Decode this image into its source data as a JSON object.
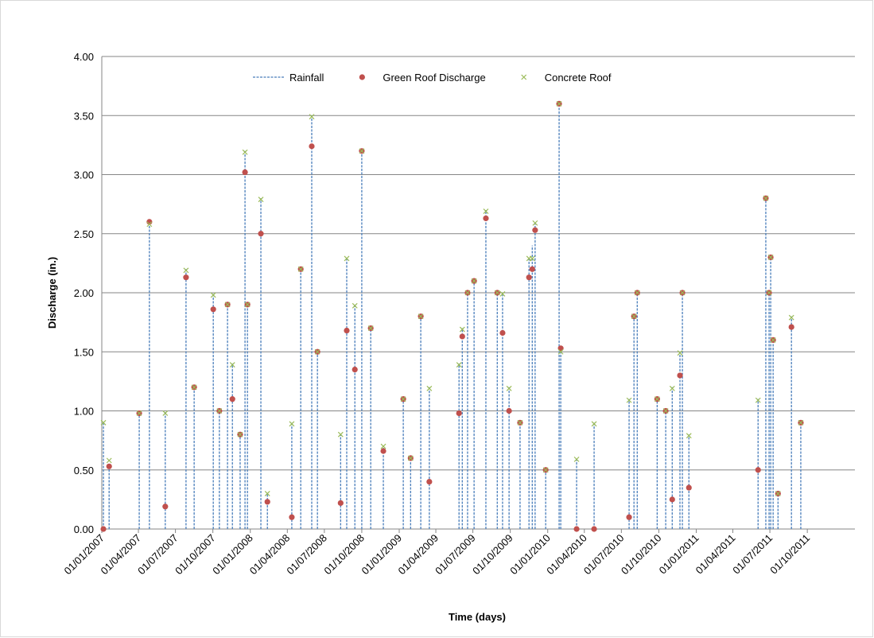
{
  "chart_data": {
    "type": "line",
    "y_label": "Discharge (in.)",
    "x_label": "Time (days)",
    "x": [
      "05/01/2007",
      "19/01/2007",
      "03/04/2007",
      "28/04/2007",
      "06/06/2007",
      "27/07/2007",
      "16/08/2007",
      "02/10/2007",
      "17/10/2007",
      "06/11/2007",
      "18/11/2007",
      "07/12/2007",
      "19/12/2007",
      "25/12/2007",
      "27/01/2008",
      "12/02/2008",
      "12/04/2008",
      "04/05/2008",
      "31/05/2008",
      "14/06/2008",
      "10/08/2008",
      "25/08/2008",
      "14/09/2008",
      "01/10/2008",
      "23/10/2008",
      "23/11/2008",
      "11/01/2009",
      "29/01/2009",
      "23/02/2009",
      "16/03/2009",
      "28/05/2009",
      "05/06/2009",
      "18/06/2009",
      "04/07/2009",
      "02/08/2009",
      "30/08/2009",
      "12/09/2009",
      "28/09/2009",
      "25/10/2009",
      "16/11/2009",
      "24/11/2009",
      "01/12/2009",
      "27/12/2009",
      "29/01/2010",
      "02/02/2010",
      "13/03/2010",
      "25/04/2010",
      "20/07/2010",
      "01/08/2010",
      "09/08/2010",
      "27/09/2010",
      "18/10/2010",
      "03/11/2010",
      "22/11/2010",
      "28/11/2010",
      "14/12/2010",
      "02/06/2011",
      "21/06/2011",
      "29/06/2011",
      "03/07/2011",
      "09/07/2011",
      "21/07/2011",
      "23/08/2011",
      "15/09/2011"
    ],
    "series": [
      {
        "name": "Rainfall",
        "color": "#4a7ebb",
        "values": [
          0.9,
          0.55,
          1.0,
          2.6,
          1.0,
          2.2,
          1.2,
          2.0,
          1.0,
          1.9,
          1.4,
          0.8,
          3.2,
          1.9,
          2.8,
          0.3,
          0.9,
          2.2,
          3.5,
          1.5,
          0.8,
          2.3,
          1.9,
          3.2,
          1.7,
          0.7,
          1.1,
          0.6,
          1.8,
          1.2,
          1.4,
          1.7,
          2.0,
          2.1,
          2.7,
          2.0,
          2.0,
          1.2,
          0.9,
          2.3,
          2.4,
          2.6,
          0.5,
          3.6,
          1.5,
          0.6,
          0.9,
          1.1,
          1.8,
          2.0,
          1.1,
          1.0,
          1.2,
          1.5,
          2.0,
          0.8,
          1.1,
          2.8,
          2.0,
          2.3,
          1.6,
          0.3,
          1.8,
          0.9
        ]
      },
      {
        "name": "Green Roof Discharge",
        "color": "#c0504d",
        "values": [
          0,
          0.53,
          0.98,
          2.6,
          0.19,
          2.13,
          1.2,
          1.86,
          1.0,
          1.9,
          1.1,
          0.8,
          3.02,
          1.9,
          2.5,
          0.23,
          0.1,
          2.2,
          3.24,
          1.5,
          0.22,
          1.68,
          1.35,
          3.2,
          1.7,
          0.66,
          1.1,
          0.6,
          1.8,
          0.4,
          0.98,
          1.63,
          2.0,
          2.1,
          2.63,
          2.0,
          1.66,
          1.0,
          0.9,
          2.13,
          2.2,
          2.53,
          0.5,
          3.6,
          1.53,
          0,
          0,
          0.1,
          1.8,
          2.0,
          1.1,
          1.0,
          0.25,
          1.3,
          2.0,
          0.35,
          0.5,
          2.8,
          2.0,
          2.3,
          1.6,
          0.3,
          1.71,
          0.9
        ]
      },
      {
        "name": "Concrete Roof",
        "color": "#9bbb59",
        "values": [
          0.9,
          0.58,
          0.98,
          2.58,
          0.98,
          2.19,
          1.2,
          1.98,
          1.0,
          1.9,
          1.39,
          0.8,
          3.19,
          1.9,
          2.79,
          0.3,
          0.89,
          2.2,
          3.49,
          1.5,
          0.8,
          2.29,
          1.89,
          3.2,
          1.7,
          0.7,
          1.1,
          0.6,
          1.8,
          1.19,
          1.39,
          1.69,
          2.0,
          2.1,
          2.69,
          2.0,
          1.99,
          1.19,
          0.9,
          2.29,
          2.29,
          2.59,
          0.5,
          3.6,
          1.5,
          0.59,
          0.89,
          1.09,
          1.8,
          2.0,
          1.1,
          1.0,
          1.19,
          1.49,
          2.0,
          0.79,
          1.09,
          2.8,
          2.0,
          2.3,
          1.6,
          0.3,
          1.79,
          0.9
        ]
      }
    ],
    "xlim": [
      "01/01/2007",
      "26/01/2012"
    ],
    "xticks": [
      "01/01/2007",
      "01/04/2007",
      "01/07/2007",
      "01/10/2007",
      "01/01/2008",
      "01/04/2008",
      "01/07/2008",
      "01/10/2008",
      "01/01/2009",
      "01/04/2009",
      "01/07/2009",
      "01/10/2009",
      "01/01/2010",
      "01/04/2010",
      "01/07/2010",
      "01/10/2010",
      "01/01/2011",
      "01/04/2011",
      "01/07/2011",
      "01/10/2011"
    ],
    "ylim": [
      0,
      4
    ],
    "yticks": [
      {
        "value": 0,
        "label": "0.00"
      },
      {
        "value": 0.5,
        "label": "0.50"
      },
      {
        "value": 1,
        "label": "1.00"
      },
      {
        "value": 1.5,
        "label": "1.50"
      },
      {
        "value": 2,
        "label": "2.00"
      },
      {
        "value": 2.5,
        "label": "2.50"
      },
      {
        "value": 3,
        "label": "3.00"
      },
      {
        "value": 3.5,
        "label": "3.50"
      },
      {
        "value": 4,
        "label": "4.00"
      }
    ],
    "grid": true,
    "legend": "top"
  }
}
